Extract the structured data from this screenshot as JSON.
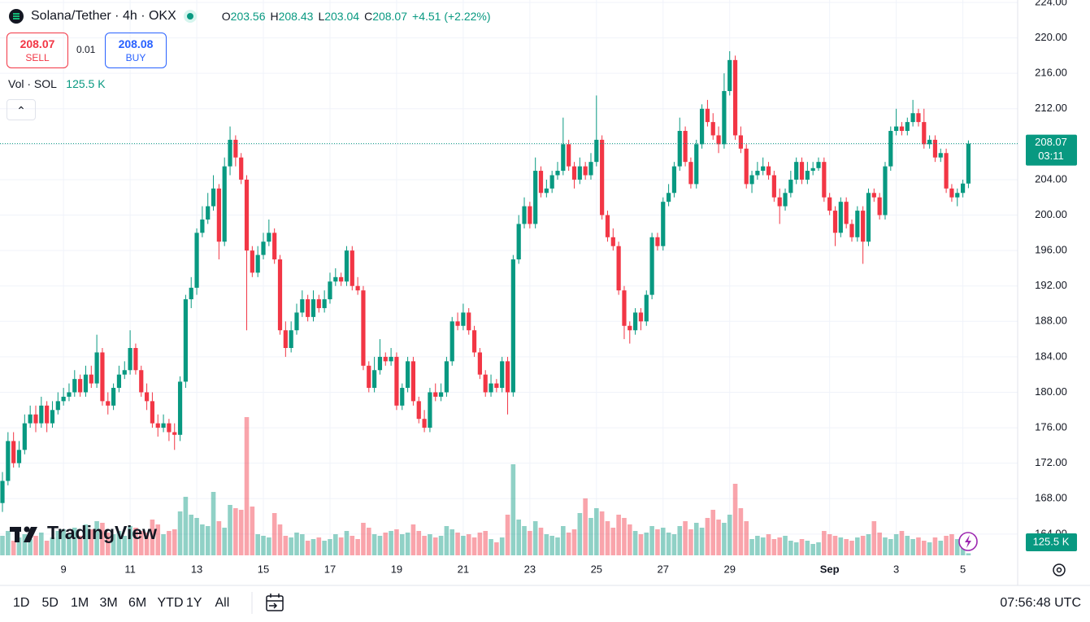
{
  "header": {
    "symbol": "Solana/Tether · 4h · OKX",
    "ohlc_labels": [
      "O",
      "H",
      "L",
      "C"
    ],
    "change": "+4.51 (+2.22%)"
  },
  "trade": {
    "sell": "SELL",
    "spread": "0.01",
    "buy_price": "208.08",
    "buy": "BUY"
  },
  "volume_legend": {
    "title": "Vol · SOL",
    "value": "125.5 K"
  },
  "logo": "TradingView",
  "toolbar": {
    "ranges": [
      "1D",
      "5D",
      "1M",
      "3M",
      "6M",
      "YTD",
      "1Y",
      "All"
    ],
    "clock": "07:56:48 UTC"
  },
  "chart_data": {
    "type": "candlestick",
    "up_color": "#089981",
    "down_color": "#f23645",
    "grid": true,
    "countdown": "03:11",
    "xlim": [
      -0.44,
      182.87
    ],
    "ylim": [
      161.6,
      224
    ],
    "yticks": [
      {
        "value": 164,
        "label": "164.00"
      },
      {
        "value": 168,
        "label": "168.00"
      },
      {
        "value": 172,
        "label": "172.00"
      },
      {
        "value": 176,
        "label": "176.00"
      },
      {
        "value": 180,
        "label": "180.00"
      },
      {
        "value": 184,
        "label": "184.00"
      },
      {
        "value": 188,
        "label": "188.00"
      },
      {
        "value": 192,
        "label": "192.00"
      },
      {
        "value": 196,
        "label": "196.00"
      },
      {
        "value": 200,
        "label": "200.00"
      },
      {
        "value": 204,
        "label": "204.00"
      },
      {
        "value": 208,
        "label": "208.00"
      },
      {
        "value": 212,
        "label": "212.00"
      },
      {
        "value": 216,
        "label": "216.00"
      },
      {
        "value": 220,
        "label": "220.00"
      },
      {
        "value": 224,
        "label": "224.00"
      }
    ],
    "xticks": [
      {
        "value": 11,
        "label": "9"
      },
      {
        "value": 23,
        "label": "11"
      },
      {
        "value": 35,
        "label": "13"
      },
      {
        "value": 47,
        "label": "15"
      },
      {
        "value": 59,
        "label": "17"
      },
      {
        "value": 71,
        "label": "19"
      },
      {
        "value": 83,
        "label": "21"
      },
      {
        "value": 95,
        "label": "23"
      },
      {
        "value": 107,
        "label": "25"
      },
      {
        "value": 119,
        "label": "27"
      },
      {
        "value": 131,
        "label": "29"
      },
      {
        "value": 149,
        "label": "Sep"
      },
      {
        "value": 161,
        "label": "3"
      },
      {
        "value": 173,
        "label": "5"
      }
    ],
    "open": [
      167.5,
      170,
      174.5,
      172,
      173.5,
      176.5,
      177.5,
      176.5,
      178.5,
      176.5,
      178,
      179,
      179.5,
      180,
      181.5,
      180,
      182,
      181,
      184.5,
      179,
      178.5,
      180.5,
      182,
      182.5,
      185,
      182.5,
      180,
      179,
      176.5,
      176,
      176.5,
      175.5,
      175.2,
      181.2,
      190.5,
      191.8,
      198,
      199.5,
      201,
      203,
      197,
      205.5,
      208.5,
      206.5,
      204,
      196,
      193.5,
      195.5,
      197,
      198,
      195,
      187,
      185,
      187,
      189,
      190.5,
      188.5,
      190.5,
      189.5,
      190.5,
      192.5,
      193,
      192.5,
      196,
      192,
      191.5,
      183,
      180.5,
      182.5,
      184,
      183.5,
      184,
      178.5,
      180.5,
      183.5,
      179,
      177,
      176,
      180,
      179.5,
      180,
      183.5,
      188,
      187.5,
      189,
      187,
      184.5,
      182,
      180,
      181,
      180.5,
      183.5,
      180,
      195,
      199,
      201,
      199,
      205,
      202.5,
      203,
      204.5,
      205,
      208,
      205.5,
      204,
      205.5,
      204.5,
      206,
      208.5,
      200,
      197.5,
      196.5,
      191.5,
      187.5,
      187,
      189,
      188,
      191,
      197.5,
      196.5,
      201.5,
      202.5,
      205.5,
      209.5,
      206,
      203.5,
      208,
      212,
      210.5,
      209,
      208,
      214,
      217.5,
      209,
      207.5,
      203.5,
      204.5,
      205,
      205.5,
      204.5,
      202,
      201,
      202.5,
      204,
      206,
      204,
      205,
      205.3,
      206,
      202,
      200.5,
      198,
      201.5,
      199,
      197.5,
      200.5,
      197,
      202.5,
      202,
      200,
      205.5,
      209.5,
      210,
      209.5,
      210.5,
      211.5,
      210.5,
      208,
      208.5,
      206.5,
      207,
      203,
      202,
      202.5,
      203.56
    ],
    "high": [
      171,
      175.5,
      175.5,
      174.5,
      177.5,
      178.5,
      178.5,
      179.5,
      179,
      179,
      180,
      180.5,
      181,
      182.5,
      182,
      183,
      183,
      186.5,
      185,
      180,
      181,
      183,
      183.5,
      187,
      185.5,
      183,
      181,
      180,
      177.5,
      177.5,
      177,
      176.5,
      181.8,
      191,
      193,
      198.5,
      201,
      202.5,
      204.5,
      203.5,
      206.5,
      210,
      209,
      207,
      204.5,
      196.5,
      196.5,
      198,
      199.5,
      198.5,
      195.5,
      188,
      188,
      190,
      191.5,
      191,
      191.5,
      191,
      191.5,
      193.5,
      194,
      193.5,
      196.5,
      196.5,
      193,
      192,
      183.5,
      184,
      186,
      184.5,
      185,
      184.5,
      181,
      184,
      184,
      179.5,
      178,
      180.5,
      181,
      181,
      184,
      188.5,
      189,
      190,
      189.5,
      187.5,
      185,
      182.5,
      182,
      181.5,
      184,
      184,
      195.5,
      200,
      202,
      201.5,
      206.5,
      205.5,
      204,
      205,
      206,
      211,
      208.5,
      206,
      206.5,
      206,
      207,
      213.5,
      209,
      200.5,
      198.5,
      197,
      192,
      188,
      189.5,
      189.5,
      191.5,
      198,
      198,
      202,
      203.5,
      206,
      211,
      210,
      206.5,
      208.5,
      212.5,
      213,
      211.5,
      210,
      216,
      218.5,
      218,
      210,
      208,
      205,
      206,
      206.5,
      206,
      205,
      203,
      203,
      205,
      206.5,
      206.5,
      206,
      206,
      206.5,
      206.5,
      202.5,
      201,
      202,
      202,
      199.5,
      201,
      201,
      203,
      203,
      202.5,
      206,
      210,
      212,
      210.5,
      211,
      213,
      212,
      212,
      209,
      209,
      207.5,
      207.5,
      203.5,
      203,
      204,
      208.43
    ],
    "low": [
      166.5,
      169.5,
      171.5,
      171.5,
      173,
      176,
      175.5,
      176,
      175.5,
      176,
      177.5,
      178.5,
      179,
      179.5,
      179.5,
      179.5,
      180.5,
      180.5,
      178.5,
      177.5,
      178,
      180,
      181.5,
      182,
      182,
      179.5,
      178,
      176,
      175,
      175.5,
      174.5,
      173.5,
      174.5,
      180.5,
      189.5,
      191,
      197.5,
      199,
      200.5,
      195,
      196.5,
      204.5,
      205.5,
      203.5,
      187,
      193,
      193,
      195,
      196.5,
      194.5,
      186.5,
      184,
      184.5,
      186.5,
      188.5,
      188,
      188,
      189,
      189,
      190,
      192,
      192,
      192,
      191.5,
      191,
      182.5,
      180,
      180,
      182,
      183,
      183,
      178,
      178,
      180,
      178.5,
      176.5,
      175.5,
      175.5,
      179,
      179,
      179.5,
      183,
      187,
      187,
      186.5,
      184,
      181.5,
      179.5,
      179.5,
      180,
      180,
      177.5,
      179.5,
      194.5,
      198.5,
      198.5,
      198.5,
      202,
      202,
      202.5,
      204,
      204.5,
      205,
      203,
      203.5,
      204,
      204,
      205.5,
      199.5,
      197,
      196,
      191,
      186,
      185.5,
      186.5,
      187,
      187.5,
      190.5,
      196,
      196,
      201,
      202,
      205,
      205.5,
      203,
      203,
      207.5,
      210,
      208.5,
      207,
      207.5,
      213.5,
      208.5,
      207,
      203,
      202.5,
      204,
      204.5,
      204,
      201.5,
      199,
      200.5,
      202,
      203.5,
      203.5,
      203.5,
      204.5,
      205,
      201.5,
      200,
      196.5,
      197.5,
      198.5,
      197,
      197,
      194.5,
      196.5,
      201.5,
      199.5,
      199.5,
      205,
      209,
      209,
      209,
      210,
      210,
      207.5,
      207.5,
      206,
      206,
      202.5,
      201.5,
      201,
      202,
      203.04
    ],
    "close": [
      170,
      174.5,
      172,
      173.5,
      176.5,
      177.5,
      176.5,
      178.5,
      176.5,
      178,
      179,
      179.5,
      180,
      181.5,
      180,
      182,
      181,
      184.5,
      179,
      178.5,
      180.5,
      182,
      182.5,
      185,
      182.5,
      180,
      179,
      176.5,
      176,
      176.5,
      175.5,
      175.2,
      181.2,
      190.5,
      191.8,
      198,
      199.5,
      201,
      203,
      197,
      205.5,
      208.5,
      206.5,
      204,
      196,
      193.5,
      195.5,
      197,
      198,
      195,
      187,
      185,
      187,
      189,
      190.5,
      188.5,
      190.5,
      189.5,
      190.5,
      192.5,
      193,
      192.5,
      196,
      192,
      191.5,
      183,
      180.5,
      182.5,
      184,
      183.5,
      184,
      178.5,
      180.5,
      183.5,
      179,
      177,
      176,
      180,
      179.5,
      180,
      183.5,
      188,
      187.5,
      189,
      187,
      184.5,
      182,
      180,
      181,
      180.5,
      183.5,
      180,
      195,
      199,
      201,
      199,
      205,
      202.5,
      203,
      204.5,
      205,
      208,
      205.5,
      204,
      205.5,
      204.5,
      206,
      208.5,
      200,
      197.5,
      196.5,
      191.5,
      187.5,
      187,
      189,
      188,
      191,
      197.5,
      196.5,
      201.5,
      202.5,
      205.5,
      209.5,
      206,
      203.5,
      208,
      212,
      210.5,
      209,
      208,
      214,
      217.5,
      209,
      207.5,
      203.5,
      204.5,
      205,
      205.5,
      204.5,
      202,
      201,
      202.5,
      204,
      206,
      204,
      205,
      205.3,
      206,
      202,
      200.5,
      198,
      201.5,
      199,
      197.5,
      200.5,
      197,
      202.5,
      202,
      200,
      205.5,
      209.5,
      210,
      209.5,
      210.5,
      211.5,
      210.5,
      208,
      208.5,
      206.5,
      207,
      203,
      202,
      202.5,
      203.56,
      208.07
    ],
    "volume": [
      1200,
      1500,
      900,
      1100,
      1300,
      1000,
      1200,
      1400,
      900,
      1100,
      1500,
      1600,
      1300,
      1700,
      1200,
      1900,
      1600,
      2100,
      2000,
      1400,
      1300,
      1500,
      1200,
      1800,
      1700,
      1500,
      1400,
      2200,
      1900,
      1300,
      1500,
      1600,
      2700,
      3600,
      2500,
      2300,
      1900,
      1800,
      3900,
      2100,
      1700,
      3100,
      2900,
      2800,
      8500,
      3000,
      1300,
      1200,
      1100,
      2600,
      1900,
      1200,
      1100,
      1400,
      1300,
      900,
      1000,
      1100,
      900,
      1000,
      1300,
      1100,
      1500,
      1200,
      1000,
      2000,
      1700,
      1300,
      1200,
      1400,
      1500,
      1600,
      1300,
      1400,
      1900,
      1500,
      1200,
      1300,
      1100,
      1200,
      1800,
      1600,
      1400,
      1200,
      1300,
      1100,
      1400,
      1500,
      1000,
      800,
      1100,
      2500,
      5600,
      2200,
      1800,
      1500,
      2100,
      1700,
      1300,
      1200,
      1100,
      1800,
      1400,
      1600,
      2600,
      3500,
      2300,
      2900,
      2700,
      2100,
      1700,
      2500,
      2300,
      1900,
      1500,
      1300,
      1400,
      1800,
      1600,
      1700,
      1400,
      1300,
      1800,
      2100,
      1600,
      2000,
      1700,
      2300,
      2800,
      2200,
      2000,
      2500,
      4400,
      2900,
      2100,
      1000,
      1200,
      1100,
      1300,
      1000,
      1100,
      1200,
      900,
      800,
      1000,
      900,
      700,
      800,
      1500,
      1300,
      1200,
      1100,
      1000,
      900,
      1100,
      1200,
      1300,
      2100,
      1400,
      1100,
      1000,
      1300,
      1500,
      1200,
      1000,
      1100,
      900,
      800,
      1100,
      900,
      1200,
      1300,
      1000,
      700,
      125.5
    ]
  }
}
